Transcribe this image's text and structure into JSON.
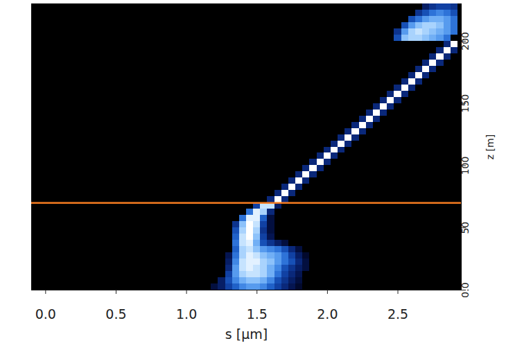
{
  "chart_data": {
    "type": "heatmap",
    "xlabel": "s [μm]",
    "ylabel": "z [m]",
    "xlim": [
      -0.1,
      2.95
    ],
    "ylim": [
      0,
      230
    ],
    "xticks": [
      {
        "value": 0,
        "label": "0.0"
      },
      {
        "value": 0.5,
        "label": "0.5"
      },
      {
        "value": 1,
        "label": "1.0"
      },
      {
        "value": 1.5,
        "label": "1.5"
      },
      {
        "value": 2,
        "label": "2.0"
      },
      {
        "value": 2.5,
        "label": "2.5"
      }
    ],
    "yticks": [
      {
        "value": 0,
        "label": "0.0"
      },
      50,
      100,
      150,
      200
    ],
    "vlim": [
      0,
      1
    ],
    "cell_size": [
      0.05,
      5
    ],
    "reference_line": {
      "z": 70,
      "color": "#f47b20"
    },
    "cells": [
      [
        1.2,
        2.5,
        0.2
      ],
      [
        1.25,
        2.5,
        0.3
      ],
      [
        1.3,
        2.5,
        0.45
      ],
      [
        1.35,
        2.5,
        0.55
      ],
      [
        1.4,
        2.5,
        0.65
      ],
      [
        1.45,
        2.5,
        0.7
      ],
      [
        1.5,
        2.5,
        0.7
      ],
      [
        1.55,
        2.5,
        0.65
      ],
      [
        1.6,
        2.5,
        0.55
      ],
      [
        1.65,
        2.5,
        0.45
      ],
      [
        1.7,
        2.5,
        0.35
      ],
      [
        1.75,
        2.5,
        0.25
      ],
      [
        1.8,
        2.5,
        0.15
      ],
      [
        1.25,
        7.5,
        0.3
      ],
      [
        1.3,
        7.5,
        0.5
      ],
      [
        1.35,
        7.5,
        0.65
      ],
      [
        1.4,
        7.5,
        0.75
      ],
      [
        1.45,
        7.5,
        0.8
      ],
      [
        1.5,
        7.5,
        0.8
      ],
      [
        1.55,
        7.5,
        0.75
      ],
      [
        1.6,
        7.5,
        0.65
      ],
      [
        1.65,
        7.5,
        0.5
      ],
      [
        1.7,
        7.5,
        0.4
      ],
      [
        1.75,
        7.5,
        0.3
      ],
      [
        1.8,
        7.5,
        0.2
      ],
      [
        1.3,
        12.5,
        0.45
      ],
      [
        1.35,
        12.5,
        0.7
      ],
      [
        1.4,
        12.5,
        0.85
      ],
      [
        1.45,
        12.5,
        0.9
      ],
      [
        1.5,
        12.5,
        0.9
      ],
      [
        1.55,
        12.5,
        0.85
      ],
      [
        1.6,
        12.5,
        0.75
      ],
      [
        1.65,
        12.5,
        0.6
      ],
      [
        1.7,
        12.5,
        0.45
      ],
      [
        1.75,
        12.5,
        0.35
      ],
      [
        1.8,
        12.5,
        0.25
      ],
      [
        1.3,
        17.5,
        0.35
      ],
      [
        1.35,
        17.5,
        0.7
      ],
      [
        1.4,
        17.5,
        0.9
      ],
      [
        1.45,
        17.5,
        0.95
      ],
      [
        1.5,
        17.5,
        0.9
      ],
      [
        1.55,
        17.5,
        0.85
      ],
      [
        1.6,
        17.5,
        0.75
      ],
      [
        1.65,
        17.5,
        0.65
      ],
      [
        1.7,
        17.5,
        0.5
      ],
      [
        1.75,
        17.5,
        0.4
      ],
      [
        1.8,
        17.5,
        0.3
      ],
      [
        1.85,
        17.5,
        0.2
      ],
      [
        1.3,
        22.5,
        0.3
      ],
      [
        1.35,
        22.5,
        0.65
      ],
      [
        1.4,
        22.5,
        0.9
      ],
      [
        1.45,
        22.5,
        0.95
      ],
      [
        1.5,
        22.5,
        0.95
      ],
      [
        1.55,
        22.5,
        0.85
      ],
      [
        1.6,
        22.5,
        0.8
      ],
      [
        1.65,
        22.5,
        0.7
      ],
      [
        1.7,
        22.5,
        0.6
      ],
      [
        1.75,
        22.5,
        0.5
      ],
      [
        1.8,
        22.5,
        0.35
      ],
      [
        1.85,
        22.5,
        0.2
      ],
      [
        1.3,
        27.5,
        0.25
      ],
      [
        1.35,
        27.5,
        0.6
      ],
      [
        1.4,
        27.5,
        0.85
      ],
      [
        1.45,
        27.5,
        0.95
      ],
      [
        1.5,
        27.5,
        0.9
      ],
      [
        1.55,
        27.5,
        0.8
      ],
      [
        1.6,
        27.5,
        0.75
      ],
      [
        1.65,
        27.5,
        0.7
      ],
      [
        1.7,
        27.5,
        0.6
      ],
      [
        1.75,
        27.5,
        0.45
      ],
      [
        1.8,
        27.5,
        0.3
      ],
      [
        1.85,
        27.5,
        0.15
      ],
      [
        1.35,
        32.5,
        0.55
      ],
      [
        1.4,
        32.5,
        0.85
      ],
      [
        1.45,
        32.5,
        0.9
      ],
      [
        1.5,
        32.5,
        0.8
      ],
      [
        1.55,
        32.5,
        0.7
      ],
      [
        1.6,
        32.5,
        0.65
      ],
      [
        1.65,
        32.5,
        0.6
      ],
      [
        1.7,
        32.5,
        0.5
      ],
      [
        1.75,
        32.5,
        0.35
      ],
      [
        1.8,
        32.5,
        0.2
      ],
      [
        1.35,
        37.5,
        0.6
      ],
      [
        1.4,
        37.5,
        0.9
      ],
      [
        1.45,
        37.5,
        0.95
      ],
      [
        1.5,
        37.5,
        0.75
      ],
      [
        1.55,
        37.5,
        0.5
      ],
      [
        1.6,
        37.5,
        0.4
      ],
      [
        1.65,
        37.5,
        0.3
      ],
      [
        1.7,
        37.5,
        0.2
      ],
      [
        1.35,
        42.5,
        0.55
      ],
      [
        1.4,
        42.5,
        0.9
      ],
      [
        1.45,
        42.5,
        1
      ],
      [
        1.5,
        42.5,
        0.8
      ],
      [
        1.55,
        42.5,
        0.45
      ],
      [
        1.6,
        42.5,
        0.25
      ],
      [
        1.35,
        47.5,
        0.5
      ],
      [
        1.4,
        47.5,
        0.85
      ],
      [
        1.45,
        47.5,
        1
      ],
      [
        1.5,
        47.5,
        0.85
      ],
      [
        1.55,
        47.5,
        0.4
      ],
      [
        1.6,
        47.5,
        0.2
      ],
      [
        1.35,
        52.5,
        0.4
      ],
      [
        1.4,
        52.5,
        0.8
      ],
      [
        1.45,
        52.5,
        1
      ],
      [
        1.5,
        52.5,
        0.9
      ],
      [
        1.55,
        52.5,
        0.45
      ],
      [
        1.6,
        52.5,
        0.2
      ],
      [
        1.4,
        57.5,
        0.6
      ],
      [
        1.45,
        57.5,
        0.95
      ],
      [
        1.5,
        57.5,
        0.95
      ],
      [
        1.55,
        57.5,
        0.55
      ],
      [
        1.6,
        57.5,
        0.2
      ],
      [
        1.45,
        62.5,
        0.6
      ],
      [
        1.5,
        62.5,
        0.95
      ],
      [
        1.55,
        62.5,
        0.85
      ],
      [
        1.6,
        62.5,
        0.35
      ],
      [
        1.5,
        67.5,
        0.45
      ],
      [
        1.55,
        67.5,
        0.9
      ],
      [
        1.6,
        67.5,
        0.9
      ],
      [
        1.65,
        67.5,
        0.3
      ],
      [
        1.6,
        72.5,
        0.35
      ],
      [
        1.65,
        72.5,
        1
      ],
      [
        1.7,
        72.5,
        0.35
      ],
      [
        1.65,
        77.5,
        0.35
      ],
      [
        1.7,
        77.5,
        1
      ],
      [
        1.75,
        77.5,
        0.35
      ],
      [
        1.7,
        82.5,
        0.35
      ],
      [
        1.75,
        82.5,
        1
      ],
      [
        1.8,
        82.5,
        0.35
      ],
      [
        1.75,
        87.5,
        0.35
      ],
      [
        1.8,
        87.5,
        1
      ],
      [
        1.85,
        87.5,
        0.35
      ],
      [
        1.8,
        92.5,
        0.35
      ],
      [
        1.85,
        92.5,
        1
      ],
      [
        1.9,
        92.5,
        0.35
      ],
      [
        1.85,
        97.5,
        0.35
      ],
      [
        1.9,
        97.5,
        1
      ],
      [
        1.95,
        97.5,
        0.35
      ],
      [
        1.9,
        102.5,
        0.35
      ],
      [
        1.95,
        102.5,
        1
      ],
      [
        2,
        102.5,
        0.35
      ],
      [
        1.95,
        107.5,
        0.35
      ],
      [
        2,
        107.5,
        1
      ],
      [
        2.05,
        107.5,
        0.35
      ],
      [
        2,
        112.5,
        0.35
      ],
      [
        2.05,
        112.5,
        1
      ],
      [
        2.1,
        112.5,
        0.35
      ],
      [
        2.05,
        117.5,
        0.35
      ],
      [
        2.1,
        117.5,
        1
      ],
      [
        2.15,
        117.5,
        0.35
      ],
      [
        2.1,
        122.5,
        0.35
      ],
      [
        2.15,
        122.5,
        1
      ],
      [
        2.2,
        122.5,
        0.35
      ],
      [
        2.15,
        127.5,
        0.35
      ],
      [
        2.2,
        127.5,
        1
      ],
      [
        2.25,
        127.5,
        0.35
      ],
      [
        2.2,
        132.5,
        0.35
      ],
      [
        2.25,
        132.5,
        1
      ],
      [
        2.3,
        132.5,
        0.35
      ],
      [
        2.25,
        137.5,
        0.35
      ],
      [
        2.3,
        137.5,
        1
      ],
      [
        2.35,
        137.5,
        0.35
      ],
      [
        2.3,
        142.5,
        0.35
      ],
      [
        2.35,
        142.5,
        1
      ],
      [
        2.4,
        142.5,
        0.35
      ],
      [
        2.35,
        147.5,
        0.35
      ],
      [
        2.4,
        147.5,
        1
      ],
      [
        2.45,
        147.5,
        0.35
      ],
      [
        2.4,
        152.5,
        0.35
      ],
      [
        2.45,
        152.5,
        1
      ],
      [
        2.5,
        152.5,
        0.35
      ],
      [
        2.45,
        157.5,
        0.35
      ],
      [
        2.5,
        157.5,
        1
      ],
      [
        2.55,
        157.5,
        0.35
      ],
      [
        2.5,
        162.5,
        0.35
      ],
      [
        2.55,
        162.5,
        1
      ],
      [
        2.6,
        162.5,
        0.35
      ],
      [
        2.55,
        167.5,
        0.35
      ],
      [
        2.6,
        167.5,
        1
      ],
      [
        2.65,
        167.5,
        0.35
      ],
      [
        2.6,
        172.5,
        0.35
      ],
      [
        2.65,
        172.5,
        1
      ],
      [
        2.7,
        172.5,
        0.35
      ],
      [
        2.65,
        177.5,
        0.35
      ],
      [
        2.7,
        177.5,
        1
      ],
      [
        2.75,
        177.5,
        0.35
      ],
      [
        2.7,
        182.5,
        0.35
      ],
      [
        2.75,
        182.5,
        1
      ],
      [
        2.8,
        182.5,
        0.35
      ],
      [
        2.75,
        187.5,
        0.35
      ],
      [
        2.8,
        187.5,
        1
      ],
      [
        2.85,
        187.5,
        0.35
      ],
      [
        2.8,
        192.5,
        0.35
      ],
      [
        2.85,
        192.5,
        1
      ],
      [
        2.9,
        192.5,
        0.35
      ],
      [
        2.85,
        197.5,
        0.35
      ],
      [
        2.9,
        197.5,
        1
      ],
      [
        2.5,
        202.5,
        0.5
      ],
      [
        2.55,
        202.5,
        0.8
      ],
      [
        2.6,
        202.5,
        0.85
      ],
      [
        2.65,
        202.5,
        0.85
      ],
      [
        2.7,
        202.5,
        0.8
      ],
      [
        2.75,
        202.5,
        0.75
      ],
      [
        2.8,
        202.5,
        0.7
      ],
      [
        2.85,
        202.5,
        0.6
      ],
      [
        2.5,
        207.5,
        0.4
      ],
      [
        2.55,
        207.5,
        0.7
      ],
      [
        2.6,
        207.5,
        0.85
      ],
      [
        2.65,
        207.5,
        0.9
      ],
      [
        2.7,
        207.5,
        0.85
      ],
      [
        2.75,
        207.5,
        0.8
      ],
      [
        2.8,
        207.5,
        0.75
      ],
      [
        2.85,
        207.5,
        0.7
      ],
      [
        2.9,
        207.5,
        0.6
      ],
      [
        2.55,
        212.5,
        0.5
      ],
      [
        2.6,
        212.5,
        0.7
      ],
      [
        2.65,
        212.5,
        0.8
      ],
      [
        2.7,
        212.5,
        0.85
      ],
      [
        2.75,
        212.5,
        0.85
      ],
      [
        2.8,
        212.5,
        0.8
      ],
      [
        2.85,
        212.5,
        0.7
      ],
      [
        2.9,
        212.5,
        0.6
      ],
      [
        2.6,
        217.5,
        0.5
      ],
      [
        2.65,
        217.5,
        0.6
      ],
      [
        2.7,
        217.5,
        0.7
      ],
      [
        2.75,
        217.5,
        0.75
      ],
      [
        2.8,
        217.5,
        0.75
      ],
      [
        2.85,
        217.5,
        0.7
      ],
      [
        2.9,
        217.5,
        0.6
      ],
      [
        2.65,
        222.5,
        0.4
      ],
      [
        2.7,
        222.5,
        0.5
      ],
      [
        2.75,
        222.5,
        0.6
      ],
      [
        2.8,
        222.5,
        0.65
      ],
      [
        2.85,
        222.5,
        0.6
      ],
      [
        2.9,
        222.5,
        0.5
      ],
      [
        2.7,
        227.5,
        0.3
      ],
      [
        2.75,
        227.5,
        0.4
      ],
      [
        2.8,
        227.5,
        0.45
      ],
      [
        2.85,
        227.5,
        0.45
      ],
      [
        2.9,
        227.5,
        0.4
      ]
    ]
  }
}
